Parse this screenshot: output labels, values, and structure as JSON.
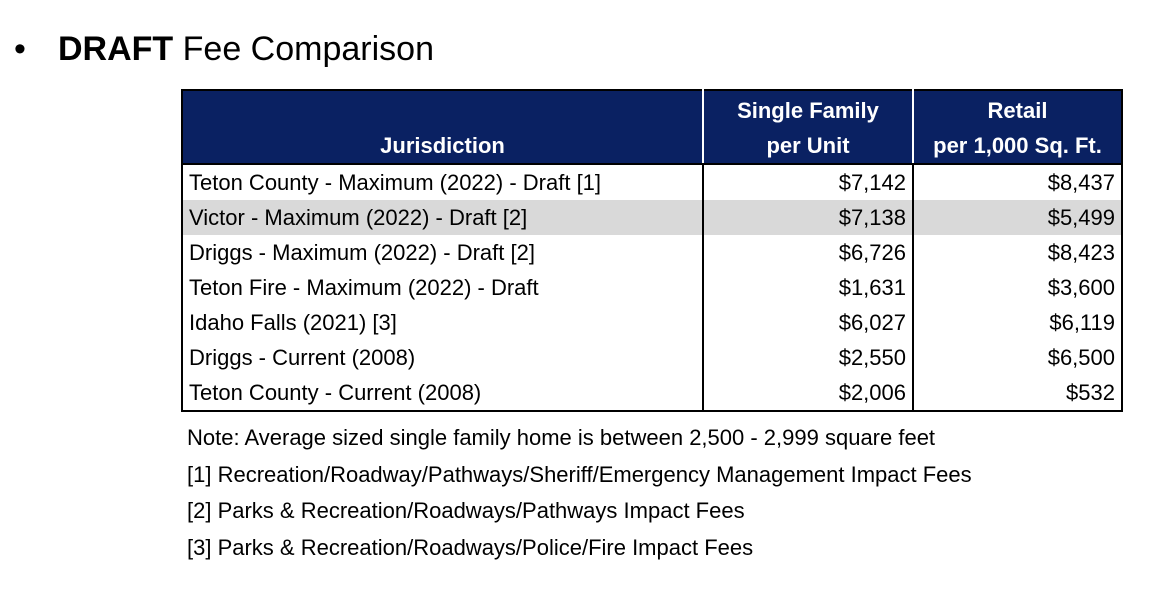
{
  "heading": {
    "bullet": "•",
    "bold": "DRAFT",
    "rest": " Fee Comparison"
  },
  "table": {
    "headers": {
      "jurisdiction": "Jurisdiction",
      "single_family_line1": "Single Family",
      "single_family_line2": "per Unit",
      "retail_line1": "Retail",
      "retail_line2": "per 1,000 Sq. Ft."
    },
    "rows": [
      {
        "jurisdiction": "Teton County - Maximum (2022) - Draft [1]",
        "single_family": "$7,142",
        "retail": "$8,437",
        "shaded": false
      },
      {
        "jurisdiction": "Victor - Maximum (2022) - Draft [2]",
        "single_family": "$7,138",
        "retail": "$5,499",
        "shaded": true
      },
      {
        "jurisdiction": "Driggs - Maximum (2022) - Draft [2]",
        "single_family": "$6,726",
        "retail": "$8,423",
        "shaded": false
      },
      {
        "jurisdiction": "Teton Fire - Maximum (2022) - Draft",
        "single_family": "$1,631",
        "retail": "$3,600",
        "shaded": false
      },
      {
        "jurisdiction": "Idaho Falls (2021) [3]",
        "single_family": "$6,027",
        "retail": "$6,119",
        "shaded": false
      },
      {
        "jurisdiction": "Driggs - Current (2008)",
        "single_family": "$2,550",
        "retail": "$6,500",
        "shaded": false
      },
      {
        "jurisdiction": "Teton County - Current (2008)",
        "single_family": "$2,006",
        "retail": "$532",
        "shaded": false
      }
    ]
  },
  "notes": [
    "Note: Average sized single family home is between 2,500 - 2,999 square feet",
    "[1] Recreation/Roadway/Pathways/Sheriff/Emergency Management Impact Fees",
    "[2] Parks & Recreation/Roadways/Pathways Impact Fees",
    "[3] Parks & Recreation/Roadways/Police/Fire Impact Fees"
  ],
  "colors": {
    "header_background": "#0a2162",
    "shaded_row": "#d9d9d9"
  }
}
